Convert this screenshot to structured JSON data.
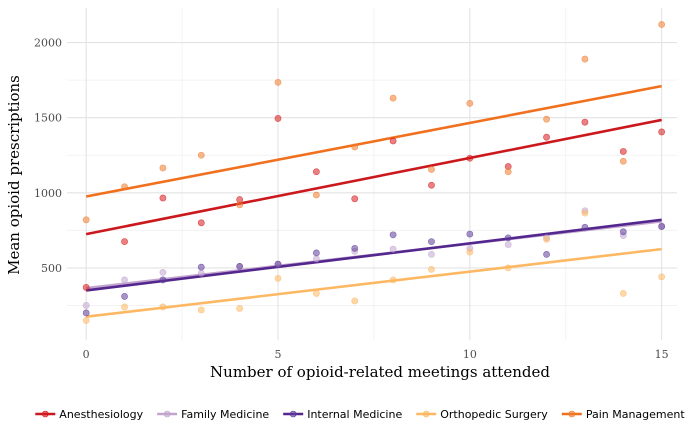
{
  "chart_data": {
    "type": "scatter",
    "xlabel": "Number of opioid-related meetings attended",
    "ylabel": "Mean opioid prescriptions",
    "xlim": [
      -0.5,
      15.4
    ],
    "ylim": [
      20,
      2230
    ],
    "x_ticks": [
      0,
      5,
      10,
      15
    ],
    "y_ticks": [
      500,
      1000,
      1500,
      2000
    ],
    "grid": true,
    "legend_position": "bottom",
    "series": [
      {
        "name": "Anesthesiology",
        "color": "#d7191c",
        "line_color": "#cb181d",
        "x": [
          0,
          1,
          2,
          3,
          4,
          5,
          6,
          7,
          8,
          9,
          10,
          11,
          12,
          13,
          14,
          15
        ],
        "y": [
          370,
          675,
          965,
          800,
          955,
          1495,
          1140,
          960,
          1345,
          1050,
          1230,
          1175,
          1370,
          1470,
          1275,
          1405
        ],
        "fit": [
          725,
          1485
        ]
      },
      {
        "name": "Family Medicine",
        "color": "#c2a5cf",
        "line_color": "#c2a5cf",
        "x": [
          0,
          1,
          2,
          3,
          4,
          5,
          6,
          7,
          8,
          9,
          10,
          11,
          12,
          13,
          14,
          15
        ],
        "y": [
          250,
          420,
          470,
          465,
          510,
          525,
          560,
          610,
          625,
          590,
          630,
          655,
          700,
          880,
          715,
          780
        ],
        "fit": [
          365,
          810
        ]
      },
      {
        "name": "Internal Medicine",
        "color": "#5e3c99",
        "line_color": "#54278f",
        "x": [
          0,
          1,
          2,
          3,
          4,
          5,
          6,
          7,
          8,
          9,
          10,
          11,
          12,
          13,
          14,
          15
        ],
        "y": [
          200,
          310,
          420,
          505,
          510,
          525,
          600,
          630,
          720,
          675,
          725,
          700,
          590,
          770,
          740,
          775
        ],
        "fit": [
          350,
          820
        ]
      },
      {
        "name": "Orthopedic Surgery",
        "color": "#fdb863",
        "line_color": "#fdb863",
        "x": [
          0,
          1,
          2,
          3,
          4,
          5,
          6,
          7,
          8,
          9,
          10,
          11,
          12,
          13,
          14,
          15
        ],
        "y": [
          150,
          240,
          240,
          220,
          230,
          430,
          330,
          280,
          420,
          490,
          605,
          500,
          690,
          865,
          330,
          440
        ],
        "fit": [
          175,
          625
        ]
      },
      {
        "name": "Pain Management",
        "color": "#f17c2e",
        "line_color": "#f1701e",
        "x": [
          0,
          1,
          2,
          3,
          4,
          5,
          6,
          7,
          8,
          9,
          10,
          11,
          12,
          13,
          14,
          15
        ],
        "y": [
          820,
          1040,
          1165,
          1250,
          920,
          1735,
          985,
          1305,
          1630,
          1155,
          1595,
          1140,
          1490,
          1890,
          1210,
          2120
        ],
        "fit": [
          975,
          1710
        ]
      }
    ]
  }
}
